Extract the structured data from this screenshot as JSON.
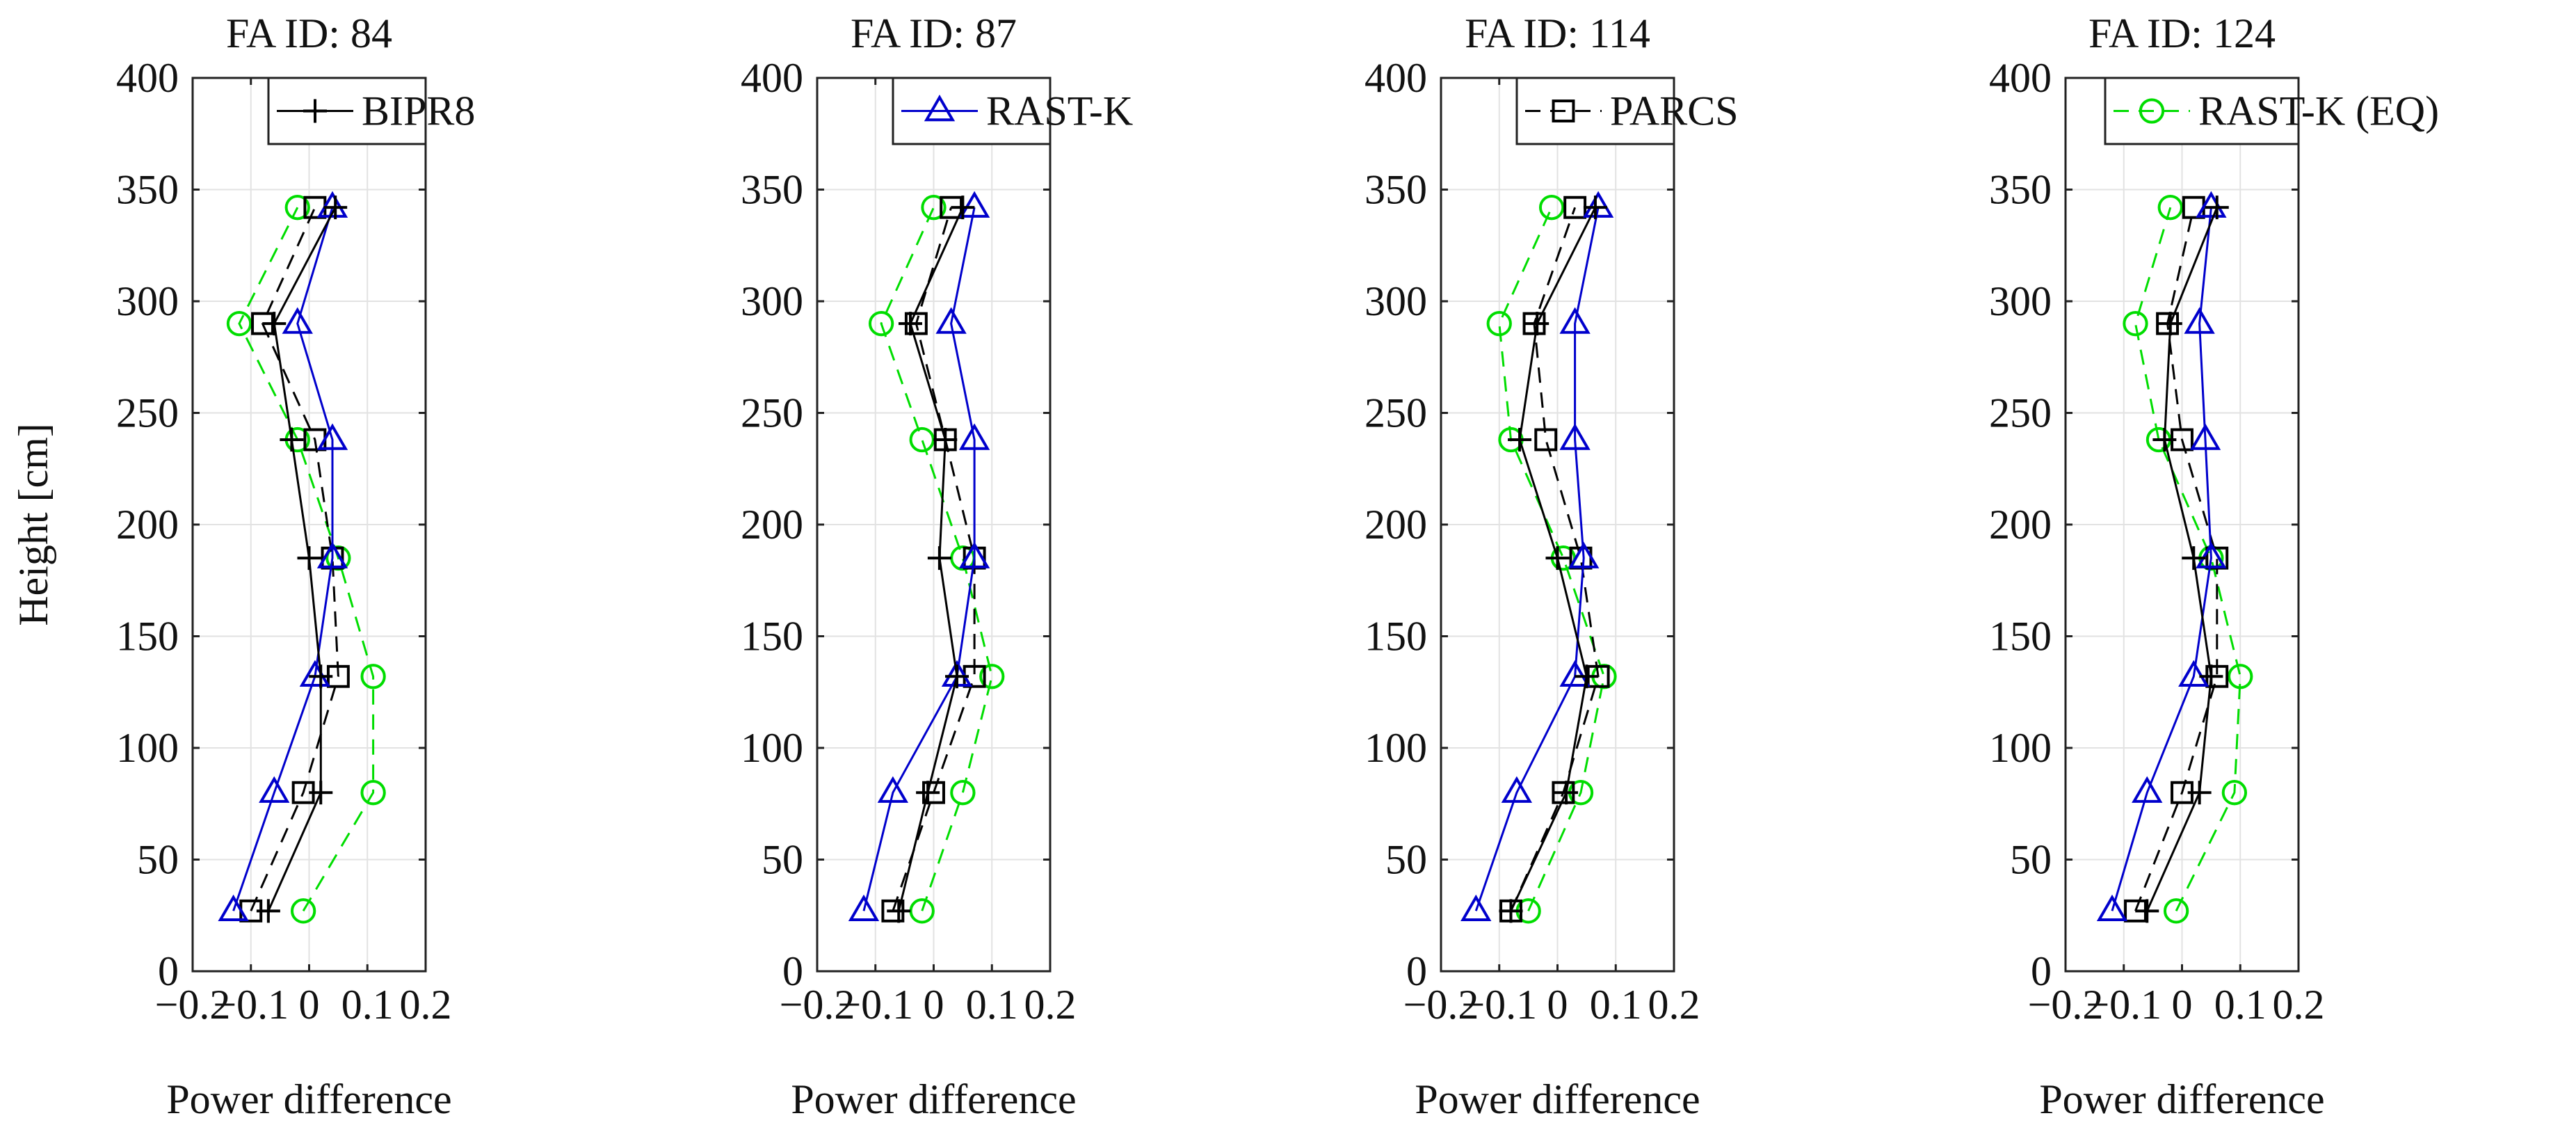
{
  "figure": {
    "ylabel": "Height [cm]",
    "xlabel": "Power difference"
  },
  "legend_entries": [
    {
      "name": "BIPR8",
      "marker": "plus",
      "color": "#000000",
      "dash": "solid"
    },
    {
      "name": "RAST-K",
      "marker": "triangle",
      "color": "#0000cc",
      "dash": "solid"
    },
    {
      "name": "PARCS",
      "marker": "square",
      "color": "#000000",
      "dash": "dashed"
    },
    {
      "name": "RAST-K (EQ)",
      "marker": "circle",
      "color": "#00dd00",
      "dash": "dashed"
    }
  ],
  "chart_data": [
    {
      "type": "line",
      "title": "FA ID: 84",
      "xlabel": "Power difference",
      "ylabel": "Height [cm]",
      "xlim": [
        -0.2,
        0.2
      ],
      "ylim": [
        0,
        400
      ],
      "xticks": [
        -0.2,
        -0.1,
        0,
        0.1,
        0.2
      ],
      "yticks": [
        0,
        50,
        100,
        150,
        200,
        250,
        300,
        350,
        400
      ],
      "xtick_labels": [
        "−0.2",
        "−0.1",
        "0",
        "0.1",
        "0.2"
      ],
      "ytick_labels": [
        "0",
        "50",
        "100",
        "150",
        "200",
        "250",
        "300",
        "350",
        "400"
      ],
      "grid": true,
      "legend_index": 0,
      "legend_label": "BIPR8",
      "y": [
        27,
        80,
        132,
        185,
        238,
        290,
        342
      ],
      "series": [
        {
          "name": "BIPR8",
          "values": [
            -0.07,
            0.02,
            0.02,
            0.0,
            -0.03,
            -0.06,
            0.045
          ]
        },
        {
          "name": "RAST-K",
          "values": [
            -0.13,
            -0.06,
            0.01,
            0.04,
            0.04,
            -0.02,
            0.04
          ]
        },
        {
          "name": "PARCS",
          "values": [
            -0.1,
            -0.01,
            0.05,
            0.04,
            0.01,
            -0.08,
            0.01
          ]
        },
        {
          "name": "RAST-K (EQ)",
          "values": [
            -0.01,
            0.11,
            0.11,
            0.05,
            -0.02,
            -0.12,
            -0.02
          ]
        }
      ]
    },
    {
      "type": "line",
      "title": "FA ID: 87",
      "xlabel": "Power difference",
      "ylabel": "",
      "xlim": [
        -0.2,
        0.2
      ],
      "ylim": [
        0,
        400
      ],
      "xticks": [
        -0.2,
        -0.1,
        0,
        0.1,
        0.2
      ],
      "yticks": [
        0,
        50,
        100,
        150,
        200,
        250,
        300,
        350,
        400
      ],
      "xtick_labels": [
        "−0.2",
        "−0.1",
        "0",
        "0.1",
        "0.2"
      ],
      "ytick_labels": [
        "0",
        "50",
        "100",
        "150",
        "200",
        "250",
        "300",
        "350",
        "400"
      ],
      "grid": true,
      "legend_index": 1,
      "legend_label": "RAST-K",
      "y": [
        27,
        80,
        132,
        185,
        238,
        290,
        342
      ],
      "series": [
        {
          "name": "BIPR8",
          "values": [
            -0.06,
            -0.01,
            0.04,
            0.01,
            0.02,
            -0.04,
            0.05
          ]
        },
        {
          "name": "RAST-K",
          "values": [
            -0.12,
            -0.07,
            0.04,
            0.07,
            0.07,
            0.03,
            0.07
          ]
        },
        {
          "name": "PARCS",
          "values": [
            -0.07,
            0.0,
            0.07,
            0.07,
            0.02,
            -0.03,
            0.03
          ]
        },
        {
          "name": "RAST-K (EQ)",
          "values": [
            -0.02,
            0.05,
            0.1,
            0.05,
            -0.02,
            -0.09,
            0.0
          ]
        }
      ]
    },
    {
      "type": "line",
      "title": "FA ID: 114",
      "xlabel": "Power difference",
      "ylabel": "",
      "xlim": [
        -0.2,
        0.2
      ],
      "ylim": [
        0,
        400
      ],
      "xticks": [
        -0.2,
        -0.1,
        0,
        0.1,
        0.2
      ],
      "yticks": [
        0,
        50,
        100,
        150,
        200,
        250,
        300,
        350,
        400
      ],
      "xtick_labels": [
        "−0.2",
        "−0.1",
        "0",
        "0.1",
        "0.2"
      ],
      "ytick_labels": [
        "0",
        "50",
        "100",
        "150",
        "200",
        "250",
        "300",
        "350",
        "400"
      ],
      "grid": true,
      "legend_index": 2,
      "legend_label": "PARCS",
      "y": [
        27,
        80,
        132,
        185,
        238,
        290,
        342
      ],
      "series": [
        {
          "name": "BIPR8",
          "values": [
            -0.08,
            0.015,
            0.05,
            0.0,
            -0.065,
            -0.035,
            0.065
          ]
        },
        {
          "name": "RAST-K",
          "values": [
            -0.14,
            -0.07,
            0.03,
            0.045,
            0.03,
            0.03,
            0.07
          ]
        },
        {
          "name": "PARCS",
          "values": [
            -0.08,
            0.01,
            0.07,
            0.04,
            -0.02,
            -0.04,
            0.03
          ]
        },
        {
          "name": "RAST-K (EQ)",
          "values": [
            -0.05,
            0.04,
            0.08,
            0.01,
            -0.08,
            -0.1,
            -0.01
          ]
        }
      ]
    },
    {
      "type": "line",
      "title": "FA ID: 124",
      "xlabel": "Power difference",
      "ylabel": "",
      "xlim": [
        -0.2,
        0.2
      ],
      "ylim": [
        0,
        400
      ],
      "xticks": [
        -0.2,
        -0.1,
        0,
        0.1,
        0.2
      ],
      "yticks": [
        0,
        50,
        100,
        150,
        200,
        250,
        300,
        350,
        400
      ],
      "xtick_labels": [
        "−0.2",
        "−0.1",
        "0",
        "0.1",
        "0.2"
      ],
      "ytick_labels": [
        "0",
        "50",
        "100",
        "150",
        "200",
        "250",
        "300",
        "350",
        "400"
      ],
      "grid": true,
      "legend_index": 3,
      "legend_label": "RAST-K (EQ)",
      "y": [
        27,
        80,
        132,
        185,
        238,
        290,
        342
      ],
      "series": [
        {
          "name": "BIPR8",
          "values": [
            -0.06,
            0.03,
            0.05,
            0.02,
            -0.03,
            -0.02,
            0.06
          ]
        },
        {
          "name": "RAST-K",
          "values": [
            -0.12,
            -0.06,
            0.02,
            0.05,
            0.04,
            0.03,
            0.05
          ]
        },
        {
          "name": "PARCS",
          "values": [
            -0.08,
            0.0,
            0.06,
            0.06,
            0.0,
            -0.025,
            0.02
          ]
        },
        {
          "name": "RAST-K (EQ)",
          "values": [
            -0.01,
            0.09,
            0.1,
            0.05,
            -0.04,
            -0.08,
            -0.02
          ]
        }
      ]
    }
  ]
}
